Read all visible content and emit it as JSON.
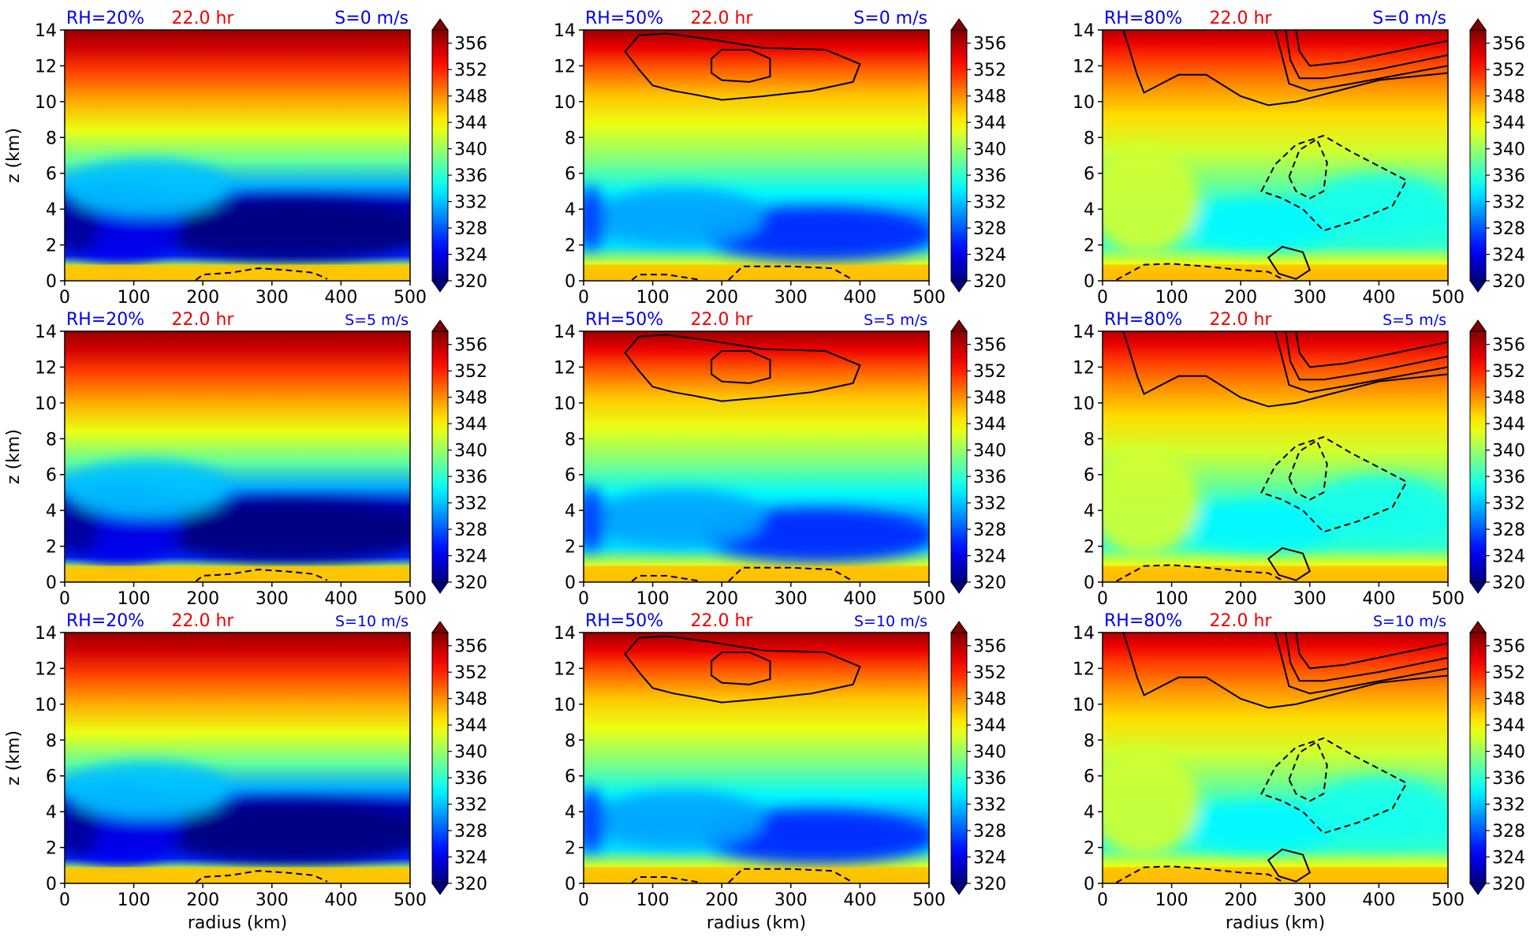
{
  "figure": {
    "time_label": "22.0 hr",
    "rh_labels": [
      "RH=20%",
      "RH=50%",
      "RH=80%"
    ],
    "shear_labels": [
      "S=0 m/s",
      "S=5 m/s",
      "S=10 m/s"
    ],
    "colors": {
      "rh_text": "#0000ee",
      "time_text": "#ee0000",
      "shear_text": "#0000ee"
    }
  },
  "chart_data": {
    "type": "heatmap",
    "xlabel": "radius (km)",
    "ylabel": "z (km)",
    "xlim": [
      0,
      500
    ],
    "ylim": [
      0,
      14
    ],
    "x_ticks": [
      0,
      100,
      200,
      300,
      400,
      500
    ],
    "y_ticks": [
      0,
      2,
      4,
      6,
      8,
      10,
      12,
      14
    ],
    "colorbar": {
      "range": [
        320,
        358
      ],
      "ticks": [
        356,
        352,
        348,
        344,
        340,
        336,
        332,
        328,
        324,
        320
      ],
      "colormap": "jet",
      "extend": "both"
    },
    "panels": [
      {
        "row": 0,
        "col": 0,
        "rh": "RH=20%",
        "time": "22.0 hr",
        "shear": "S=0 m/s"
      },
      {
        "row": 0,
        "col": 1,
        "rh": "RH=50%",
        "time": "22.0 hr",
        "shear": "S=0 m/s"
      },
      {
        "row": 0,
        "col": 2,
        "rh": "RH=80%",
        "time": "22.0 hr",
        "shear": "S=0 m/s"
      },
      {
        "row": 1,
        "col": 0,
        "rh": "RH=20%",
        "time": "22.0 hr",
        "shear": "S=5 m/s"
      },
      {
        "row": 1,
        "col": 1,
        "rh": "RH=50%",
        "time": "22.0 hr",
        "shear": "S=5 m/s"
      },
      {
        "row": 1,
        "col": 2,
        "rh": "RH=80%",
        "time": "22.0 hr",
        "shear": "S=5 m/s"
      },
      {
        "row": 2,
        "col": 0,
        "rh": "RH=20%",
        "time": "22.0 hr",
        "shear": "S=10 m/s"
      },
      {
        "row": 2,
        "col": 1,
        "rh": "RH=50%",
        "time": "22.0 hr",
        "shear": "S=10 m/s"
      },
      {
        "row": 2,
        "col": 2,
        "rh": "RH=80%",
        "time": "22.0 hr",
        "shear": "S=10 m/s"
      }
    ]
  }
}
